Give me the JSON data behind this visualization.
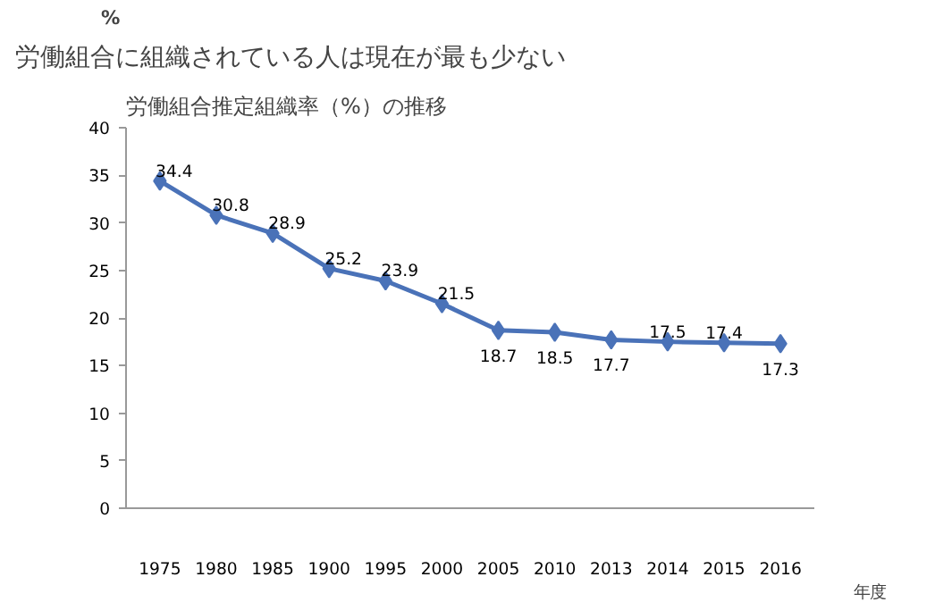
{
  "chart_data": {
    "type": "line",
    "title": "労働組合に組織されている人は現在が最も少ない",
    "subtitle": "労働組合推定組織率（%）の推移",
    "ylabel": "%",
    "xlabel": "年度",
    "categories": [
      "1975",
      "1980",
      "1985",
      "1900",
      "1995",
      "2000",
      "2005",
      "2010",
      "2013",
      "2014",
      "2015",
      "2016"
    ],
    "values": [
      34.4,
      30.8,
      28.9,
      25.2,
      23.9,
      21.5,
      18.7,
      18.5,
      17.7,
      17.5,
      17.4,
      17.3
    ],
    "color": "#4a72b8",
    "marker": "diamond",
    "data_labels": true,
    "grid": false,
    "ylim": [
      0,
      40
    ],
    "yticks": [
      0,
      5,
      10,
      15,
      20,
      25,
      30,
      35,
      40
    ]
  }
}
